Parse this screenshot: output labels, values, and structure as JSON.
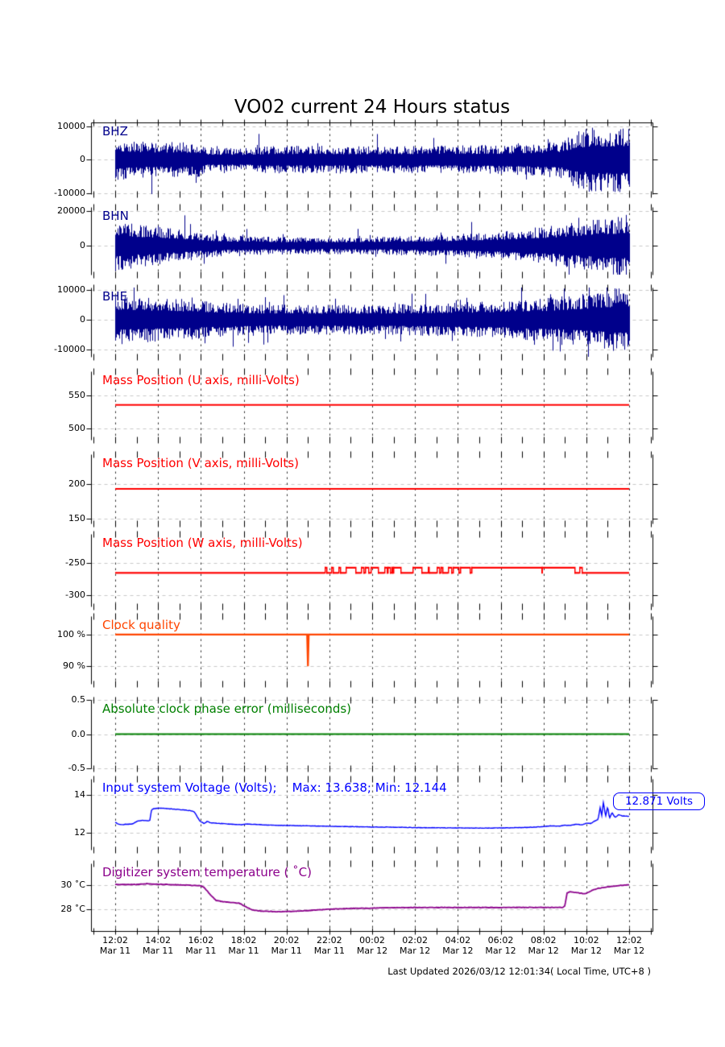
{
  "page": {
    "footer": "Last Updated 2026/03/12 12:01:34( Local Time, UTC+8 )",
    "background": "#ffffff"
  },
  "chart_data": {
    "type": "line",
    "title": "VO02 current 24 Hours status",
    "annotation": {
      "text": "12.871 Volts",
      "panel": "voltage",
      "value": 12.871,
      "color": "#0000ff"
    },
    "x_axis": {
      "hours_span": 24,
      "tick_step_hours": 2,
      "grid": true,
      "ticks": [
        {
          "time": "12:02",
          "date": "Mar 11"
        },
        {
          "time": "14:02",
          "date": "Mar 11"
        },
        {
          "time": "16:02",
          "date": "Mar 11"
        },
        {
          "time": "18:02",
          "date": "Mar 11"
        },
        {
          "time": "20:02",
          "date": "Mar 11"
        },
        {
          "time": "22:02",
          "date": "Mar 11"
        },
        {
          "time": "00:02",
          "date": "Mar 12"
        },
        {
          "time": "02:02",
          "date": "Mar 12"
        },
        {
          "time": "04:02",
          "date": "Mar 12"
        },
        {
          "time": "06:02",
          "date": "Mar 12"
        },
        {
          "time": "08:02",
          "date": "Mar 12"
        },
        {
          "time": "10:02",
          "date": "Mar 12"
        },
        {
          "time": "12:02",
          "date": "Mar 12"
        }
      ]
    },
    "panels": [
      {
        "id": "bhz",
        "title": "BHZ",
        "kind": "seismic",
        "color": "#00008B",
        "seed": 101,
        "ylim": [
          -10250,
          11100
        ],
        "yticks": [
          {
            "v": 10000,
            "t": "10000"
          },
          {
            "v": 0,
            "t": "0"
          },
          {
            "v": -10000,
            "t": "-10000"
          }
        ],
        "envelope": [
          [
            0,
            7000
          ],
          [
            0.6,
            5600
          ],
          [
            2,
            5300
          ],
          [
            3.9,
            5200
          ],
          [
            4.3,
            3700
          ],
          [
            6.3,
            3600
          ],
          [
            7.2,
            4200
          ],
          [
            13,
            4100
          ],
          [
            18,
            4400
          ],
          [
            19.5,
            4900
          ],
          [
            21,
            5800
          ],
          [
            21.4,
            8500
          ],
          [
            22.2,
            9700
          ],
          [
            24,
            10000
          ]
        ]
      },
      {
        "id": "bhn",
        "title": "BHN",
        "kind": "seismic",
        "color": "#00008B",
        "seed": 202,
        "ylim": [
          -16700,
          22300
        ],
        "yticks": [
          {
            "v": 20000,
            "t": "20000"
          },
          {
            "v": 0,
            "t": "0"
          }
        ],
        "envelope": [
          [
            0,
            15000
          ],
          [
            1,
            12500
          ],
          [
            2,
            11000
          ],
          [
            3,
            9500
          ],
          [
            4,
            7500
          ],
          [
            5,
            6200
          ],
          [
            6,
            5600
          ],
          [
            8,
            5100
          ],
          [
            10,
            4900
          ],
          [
            12,
            5200
          ],
          [
            14,
            5800
          ],
          [
            16,
            6800
          ],
          [
            18,
            8500
          ],
          [
            20,
            11000
          ],
          [
            21.5,
            13500
          ],
          [
            23,
            16500
          ],
          [
            24,
            18000
          ]
        ]
      },
      {
        "id": "bhe",
        "title": "BHE",
        "kind": "seismic",
        "color": "#00008B",
        "seed": 303,
        "ylim": [
          -12500,
          10800
        ],
        "yticks": [
          {
            "v": 10000,
            "t": "10000"
          },
          {
            "v": 0,
            "t": "0"
          },
          {
            "v": -10000,
            "t": "-10000"
          }
        ],
        "envelope": [
          [
            0,
            8500
          ],
          [
            1,
            7800
          ],
          [
            3,
            7000
          ],
          [
            5,
            5800
          ],
          [
            7,
            5100
          ],
          [
            10,
            5000
          ],
          [
            13,
            5200
          ],
          [
            16,
            5700
          ],
          [
            18,
            6300
          ],
          [
            20,
            7200
          ],
          [
            22,
            9000
          ],
          [
            23,
            10300
          ],
          [
            24,
            11200
          ]
        ]
      },
      {
        "id": "mass-u",
        "title": "Mass Position (U axis, milli-Volts)",
        "kind": "flat",
        "color": "#ff0000",
        "value": 536,
        "ylim": [
          483,
          587
        ],
        "yticks": [
          {
            "v": 550,
            "t": "550"
          },
          {
            "v": 500,
            "t": "500"
          }
        ]
      },
      {
        "id": "mass-v",
        "title": "Mass Position (V axis, milli-Volts)",
        "kind": "flat",
        "color": "#ff0000",
        "value": 193,
        "ylim": [
          143,
          243
        ],
        "yticks": [
          {
            "v": 200,
            "t": "200"
          },
          {
            "v": 150,
            "t": "150"
          }
        ]
      },
      {
        "id": "mass-w",
        "title": "Mass Position (W axis, milli-Volts)",
        "kind": "steps",
        "color": "#ff0000",
        "seed": 404,
        "low": -265,
        "high": -257,
        "ylim": [
          -317,
          -205
        ],
        "yticks": [
          {
            "v": -250,
            "t": "-250"
          },
          {
            "v": -300,
            "t": "-300"
          }
        ],
        "segments": [
          {
            "t0": 0,
            "t1": 8.0,
            "mode": "low"
          },
          {
            "t0": 8.0,
            "t1": 9.9,
            "mode": "sparse_up",
            "p": 0.3
          },
          {
            "t0": 9.9,
            "t1": 14.4,
            "mode": "dense",
            "p": 0.55
          },
          {
            "t0": 14.4,
            "t1": 15.7,
            "mode": "dense",
            "p": 0.4
          },
          {
            "t0": 15.7,
            "t1": 17.8,
            "mode": "sparse_down",
            "p": 0.25
          },
          {
            "t0": 17.8,
            "t1": 21.4,
            "mode": "high",
            "blips_down": [
              19.9
            ]
          },
          {
            "t0": 21.4,
            "t1": 21.86,
            "mode": "dense",
            "p": 0.5
          },
          {
            "t0": 21.86,
            "t1": 23.95,
            "mode": "low"
          }
        ]
      },
      {
        "id": "clock-quality",
        "title": "Clock quality",
        "kind": "quality",
        "color": "#FF4500",
        "baseline": 100,
        "dips": [
          {
            "t": 9.0,
            "value": 90
          }
        ],
        "ylim": [
          84.5,
          105.8
        ],
        "yticks": [
          {
            "v": 100,
            "t": "100 %"
          },
          {
            "v": 90,
            "t": "90 %"
          }
        ]
      },
      {
        "id": "clock-phase",
        "title": "Absolute clock phase error (milliseconds)",
        "kind": "flat",
        "color": "#008000",
        "value": 0.0,
        "ylim": [
          -0.5,
          0.5
        ],
        "yticks": [
          {
            "v": 0.5,
            "t": "0.5"
          },
          {
            "v": 0,
            "t": "0.0"
          },
          {
            "v": -0.5,
            "t": "-0.5"
          }
        ]
      },
      {
        "id": "voltage",
        "title": "Input system Voltage (Volts);    Max: 13.638; Min: 12.144",
        "kind": "line",
        "color": "#0000ff",
        "seed": 505,
        "noise": 0.02,
        "lw": 1.4,
        "max": 13.638,
        "min": 12.144,
        "last_value": 12.871,
        "ylim": [
          11.1,
          14.85
        ],
        "yticks": [
          {
            "v": 14,
            "t": "14"
          },
          {
            "v": 12,
            "t": "12"
          }
        ],
        "points": [
          [
            0,
            12.55
          ],
          [
            0.15,
            12.45
          ],
          [
            0.35,
            12.42
          ],
          [
            0.55,
            12.45
          ],
          [
            0.8,
            12.46
          ],
          [
            1.05,
            12.62
          ],
          [
            1.3,
            12.65
          ],
          [
            1.55,
            12.63
          ],
          [
            1.62,
            12.66
          ],
          [
            1.7,
            13.22
          ],
          [
            1.85,
            13.28
          ],
          [
            2.1,
            13.3
          ],
          [
            2.5,
            13.27
          ],
          [
            3.0,
            13.22
          ],
          [
            3.5,
            13.17
          ],
          [
            3.7,
            13.1
          ],
          [
            3.85,
            12.8
          ],
          [
            3.95,
            12.62
          ],
          [
            4.05,
            12.55
          ],
          [
            4.15,
            12.48
          ],
          [
            4.3,
            12.6
          ],
          [
            4.45,
            12.52
          ],
          [
            5.0,
            12.48
          ],
          [
            5.5,
            12.44
          ],
          [
            5.9,
            12.42
          ],
          [
            6.1,
            12.46
          ],
          [
            6.5,
            12.44
          ],
          [
            7,
            12.41
          ],
          [
            8,
            12.38
          ],
          [
            9,
            12.36
          ],
          [
            10,
            12.34
          ],
          [
            11,
            12.32
          ],
          [
            12,
            12.3
          ],
          [
            13,
            12.29
          ],
          [
            14,
            12.27
          ],
          [
            15,
            12.26
          ],
          [
            16,
            12.25
          ],
          [
            17,
            12.24
          ],
          [
            18,
            12.25
          ],
          [
            19,
            12.27
          ],
          [
            19.5,
            12.29
          ],
          [
            20,
            12.32
          ],
          [
            20.3,
            12.36
          ],
          [
            20.7,
            12.34
          ],
          [
            21,
            12.4
          ],
          [
            21.2,
            12.38
          ],
          [
            21.5,
            12.44
          ],
          [
            21.8,
            12.42
          ],
          [
            22,
            12.5
          ],
          [
            22.2,
            12.48
          ],
          [
            22.4,
            12.62
          ],
          [
            22.55,
            12.7
          ],
          [
            22.65,
            13.35
          ],
          [
            22.72,
            12.9
          ],
          [
            22.8,
            13.62
          ],
          [
            22.9,
            12.85
          ],
          [
            23,
            13.4
          ],
          [
            23.08,
            12.75
          ],
          [
            23.2,
            13.05
          ],
          [
            23.35,
            12.8
          ],
          [
            23.5,
            12.95
          ],
          [
            23.7,
            12.88
          ],
          [
            24,
            12.871
          ]
        ]
      },
      {
        "id": "temperature",
        "title": "Digitizer system temperature ( ˚C)",
        "kind": "line",
        "color": "#8B008B",
        "seed": 606,
        "noise": 0.04,
        "lw": 1.8,
        "ylim": [
          26.2,
          31.8
        ],
        "yticks": [
          {
            "v": 30,
            "t": "30 ˚C"
          },
          {
            "v": 28,
            "t": "28 ˚C"
          }
        ],
        "points": [
          [
            0,
            30.05
          ],
          [
            1,
            30.05
          ],
          [
            1.5,
            30.12
          ],
          [
            1.8,
            30.08
          ],
          [
            2.5,
            30.05
          ],
          [
            3,
            30.02
          ],
          [
            3.6,
            29.98
          ],
          [
            4.0,
            29.95
          ],
          [
            4.15,
            29.8
          ],
          [
            4.45,
            29.2
          ],
          [
            4.7,
            28.75
          ],
          [
            5,
            28.62
          ],
          [
            5.4,
            28.57
          ],
          [
            5.8,
            28.5
          ],
          [
            6.1,
            28.2
          ],
          [
            6.4,
            27.95
          ],
          [
            6.8,
            27.85
          ],
          [
            7.5,
            27.8
          ],
          [
            8.2,
            27.82
          ],
          [
            9,
            27.9
          ],
          [
            10,
            28.0
          ],
          [
            11,
            28.07
          ],
          [
            12,
            28.1
          ],
          [
            13,
            28.13
          ],
          [
            14,
            28.15
          ],
          [
            15,
            28.15
          ],
          [
            16,
            28.15
          ],
          [
            17,
            28.15
          ],
          [
            18,
            28.15
          ],
          [
            19,
            28.15
          ],
          [
            20,
            28.15
          ],
          [
            20.9,
            28.15
          ],
          [
            21.0,
            28.3
          ],
          [
            21.1,
            29.35
          ],
          [
            21.25,
            29.45
          ],
          [
            21.45,
            29.4
          ],
          [
            21.7,
            29.33
          ],
          [
            21.95,
            29.3
          ],
          [
            22.1,
            29.4
          ],
          [
            22.3,
            29.6
          ],
          [
            22.6,
            29.75
          ],
          [
            23,
            29.85
          ],
          [
            23.4,
            29.95
          ],
          [
            23.8,
            30.0
          ],
          [
            24,
            30.02
          ]
        ]
      }
    ]
  }
}
